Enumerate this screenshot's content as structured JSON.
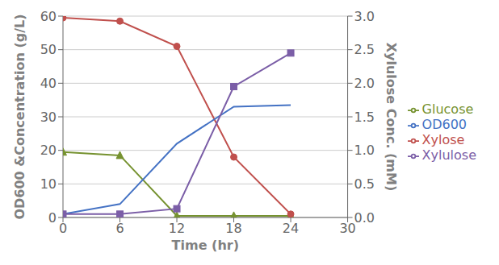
{
  "chart_data": {
    "type": "line",
    "xlabel": "Time (hr)",
    "ylabel": "OD600 &Concentration (g/L)",
    "y2label": "Xylulose  Conc. (mM)",
    "x": [
      0,
      6,
      12,
      18,
      24
    ],
    "series": [
      {
        "name": "Glucose",
        "color": "#769230",
        "marker": "triangle",
        "values": [
          19.5,
          18.5,
          0.5,
          0.5,
          0.5
        ]
      },
      {
        "name": "Xylose",
        "color": "#C0504D",
        "marker": "circle",
        "values": [
          59.5,
          58.5,
          51.0,
          18.0,
          1.0
        ]
      },
      {
        "name": "OD600",
        "color": "#4472C4",
        "values": [
          1.0,
          4.0,
          22.0,
          33.0,
          33.5
        ]
      },
      {
        "name": "Xylulose",
        "color": "#7B5EA7",
        "marker": "square",
        "axis": "y2",
        "values": [
          0.05,
          0.05,
          0.13,
          1.95,
          2.45
        ]
      }
    ],
    "xlim": [
      0,
      30
    ],
    "xticks": [
      0,
      6,
      12,
      18,
      24,
      30
    ],
    "ylim": [
      0,
      60
    ],
    "yticks": [
      0,
      10,
      20,
      30,
      40,
      50,
      60
    ],
    "y2lim": [
      0.0,
      3.0
    ],
    "y2ticks": [
      {
        "value": 0.0,
        "label": "0.0"
      },
      0.5,
      {
        "value": 1.0,
        "label": "1.0"
      },
      1.5,
      {
        "value": 2.0,
        "label": "2.0"
      },
      2.5,
      {
        "value": 3.0,
        "label": "3.0"
      }
    ],
    "grid": true,
    "legend": "right"
  }
}
